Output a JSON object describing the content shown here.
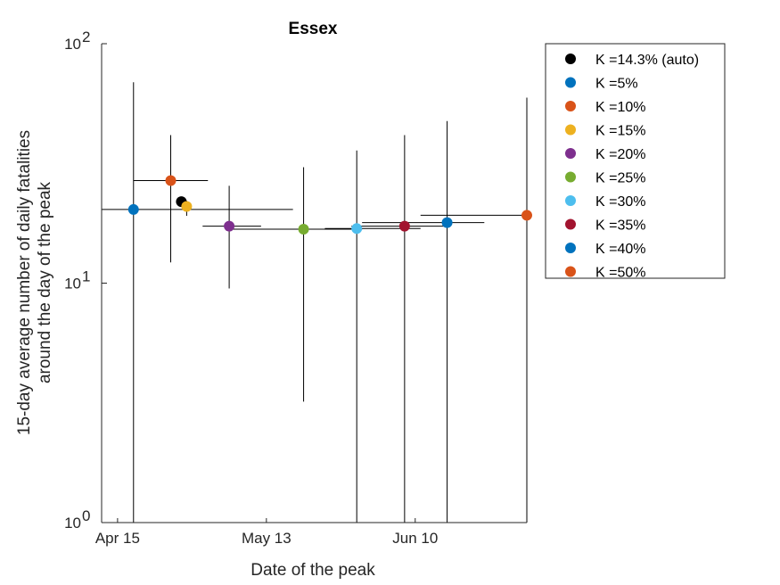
{
  "chart_data": {
    "type": "scatter",
    "title": "Essex",
    "xlabel": "Date of the peak",
    "ylabel_lines": [
      "15-day average number of daily fatalities",
      "around the day of the peak"
    ],
    "x_axis": {
      "type": "date",
      "range": [
        "2020-04-12",
        "2020-07-01"
      ],
      "ticks": [
        {
          "date": "2020-04-15",
          "label": "Apr 15"
        },
        {
          "date": "2020-05-13",
          "label": "May 13"
        },
        {
          "date": "2020-06-10",
          "label": "Jun 10"
        }
      ],
      "minor_tick_dates": [
        "2020-04-12"
      ]
    },
    "y_axis": {
      "scale": "log",
      "range": [
        1,
        100
      ],
      "ticks": [
        {
          "value": 1,
          "base": "10",
          "exp": "0"
        },
        {
          "value": 10,
          "base": "10",
          "exp": "1"
        },
        {
          "value": 100,
          "base": "10",
          "exp": "2"
        }
      ]
    },
    "grid": false,
    "legend_position": "outside-right",
    "series": [
      {
        "name": "K =14.3% (auto)",
        "color": "#000000",
        "x": "2020-04-27",
        "y": 21.9,
        "y_err": [
          20.9,
          22.9
        ],
        "x_err": [
          "2020-04-26",
          "2020-04-28"
        ]
      },
      {
        "name": "K =5%",
        "color": "#0072BD",
        "x": "2020-04-18",
        "y": 20.3,
        "y_err": [
          1,
          69
        ],
        "x_err": [
          "2020-04-12",
          "2020-05-18"
        ]
      },
      {
        "name": "K =10%",
        "color": "#D95319",
        "x": "2020-04-25",
        "y": 26.8,
        "y_err": [
          12.2,
          41.5
        ],
        "x_err": [
          "2020-04-18",
          "2020-05-02"
        ]
      },
      {
        "name": "K =15%",
        "color": "#EDB120",
        "x": "2020-04-28",
        "y": 20.9,
        "y_err": [
          19.1,
          22.1
        ],
        "x_err": [
          "2020-04-28",
          "2020-04-28"
        ]
      },
      {
        "name": "K =20%",
        "color": "#7E2F8E",
        "x": "2020-05-06",
        "y": 17.3,
        "y_err": [
          9.5,
          25.5
        ],
        "x_err": [
          "2020-05-01",
          "2020-05-12"
        ]
      },
      {
        "name": "K =25%",
        "color": "#77AC30",
        "x": "2020-05-20",
        "y": 16.8,
        "y_err": [
          3.2,
          30.5
        ],
        "x_err": [
          "2020-05-06",
          "2020-05-31"
        ]
      },
      {
        "name": "K =30%",
        "color": "#4DBEEE",
        "x": "2020-05-30",
        "y": 16.9,
        "y_err": [
          1,
          35.8
        ],
        "x_err": [
          "2020-05-24",
          "2020-06-11"
        ]
      },
      {
        "name": "K =35%",
        "color": "#A2142F",
        "x": "2020-06-08",
        "y": 17.3,
        "y_err": [
          1,
          41.5
        ],
        "x_err": [
          "2020-05-29",
          "2020-06-16"
        ]
      },
      {
        "name": "K =40%",
        "color": "#0072BD",
        "x": "2020-06-16",
        "y": 17.9,
        "y_err": [
          1,
          47.5
        ],
        "x_err": [
          "2020-05-31",
          "2020-06-23"
        ]
      },
      {
        "name": "K =50%",
        "color": "#D95319",
        "x": "2020-07-01",
        "y": 19.2,
        "y_err": [
          1,
          59.5
        ],
        "x_err": [
          "2020-06-11",
          "2020-07-01"
        ]
      }
    ]
  }
}
